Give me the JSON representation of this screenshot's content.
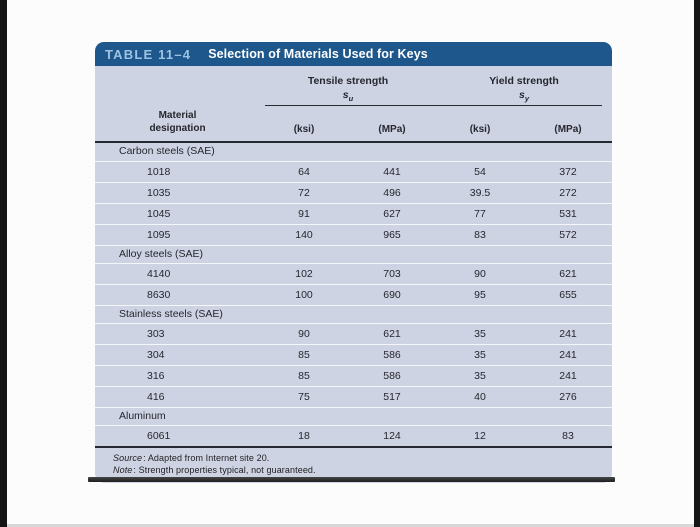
{
  "table": {
    "label": "TABLE 11–4",
    "title": "Selection of Materials Used for Keys",
    "header": {
      "material_line1": "Material",
      "material_line2": "designation",
      "tensile_group": "Tensile strength",
      "tensile_symbol": "s",
      "tensile_symbol_sub": "u",
      "yield_group": "Yield strength",
      "yield_symbol": "s",
      "yield_symbol_sub": "y",
      "units": [
        "(ksi)",
        "(MPa)",
        "(ksi)",
        "(MPa)"
      ]
    },
    "rows": [
      {
        "type": "section",
        "label": "Carbon steels (SAE)"
      },
      {
        "type": "data",
        "label": "1018",
        "values": [
          "64",
          "441",
          "54",
          "372"
        ]
      },
      {
        "type": "data",
        "label": "1035",
        "values": [
          "72",
          "496",
          "39.5",
          "272"
        ]
      },
      {
        "type": "data",
        "label": "1045",
        "values": [
          "91",
          "627",
          "77",
          "531"
        ]
      },
      {
        "type": "data",
        "label": "1095",
        "values": [
          "140",
          "965",
          "83",
          "572"
        ]
      },
      {
        "type": "section",
        "label": "Alloy steels (SAE)"
      },
      {
        "type": "data",
        "label": "4140",
        "values": [
          "102",
          "703",
          "90",
          "621"
        ]
      },
      {
        "type": "data",
        "label": "8630",
        "values": [
          "100",
          "690",
          "95",
          "655"
        ]
      },
      {
        "type": "section",
        "label": "Stainless steels (SAE)"
      },
      {
        "type": "data",
        "label": "303",
        "values": [
          "90",
          "621",
          "35",
          "241"
        ]
      },
      {
        "type": "data",
        "label": "304",
        "values": [
          "85",
          "586",
          "35",
          "241"
        ]
      },
      {
        "type": "data",
        "label": "316",
        "values": [
          "85",
          "586",
          "35",
          "241"
        ]
      },
      {
        "type": "data",
        "label": "416",
        "values": [
          "75",
          "517",
          "40",
          "276"
        ]
      },
      {
        "type": "section",
        "label": "Aluminum"
      },
      {
        "type": "data",
        "label": "6061",
        "values": [
          "18",
          "124",
          "12",
          "83"
        ]
      }
    ],
    "footer": {
      "source_label": "Source",
      "source_text": ": Adapted from Internet site 20.",
      "note_label": "Note",
      "note_text": ": Strength properties typical, not guaranteed."
    }
  },
  "colors": {
    "header_bar": "#1d578c",
    "header_label_text": "#9ec3e2",
    "header_title_text": "#ffffff",
    "body_background": "#cdd3e3",
    "dark_rule": "#262833",
    "row_divider": "#f4f6fa",
    "body_text": "#26262e",
    "page_edge_bar": "#2a2a2a"
  }
}
